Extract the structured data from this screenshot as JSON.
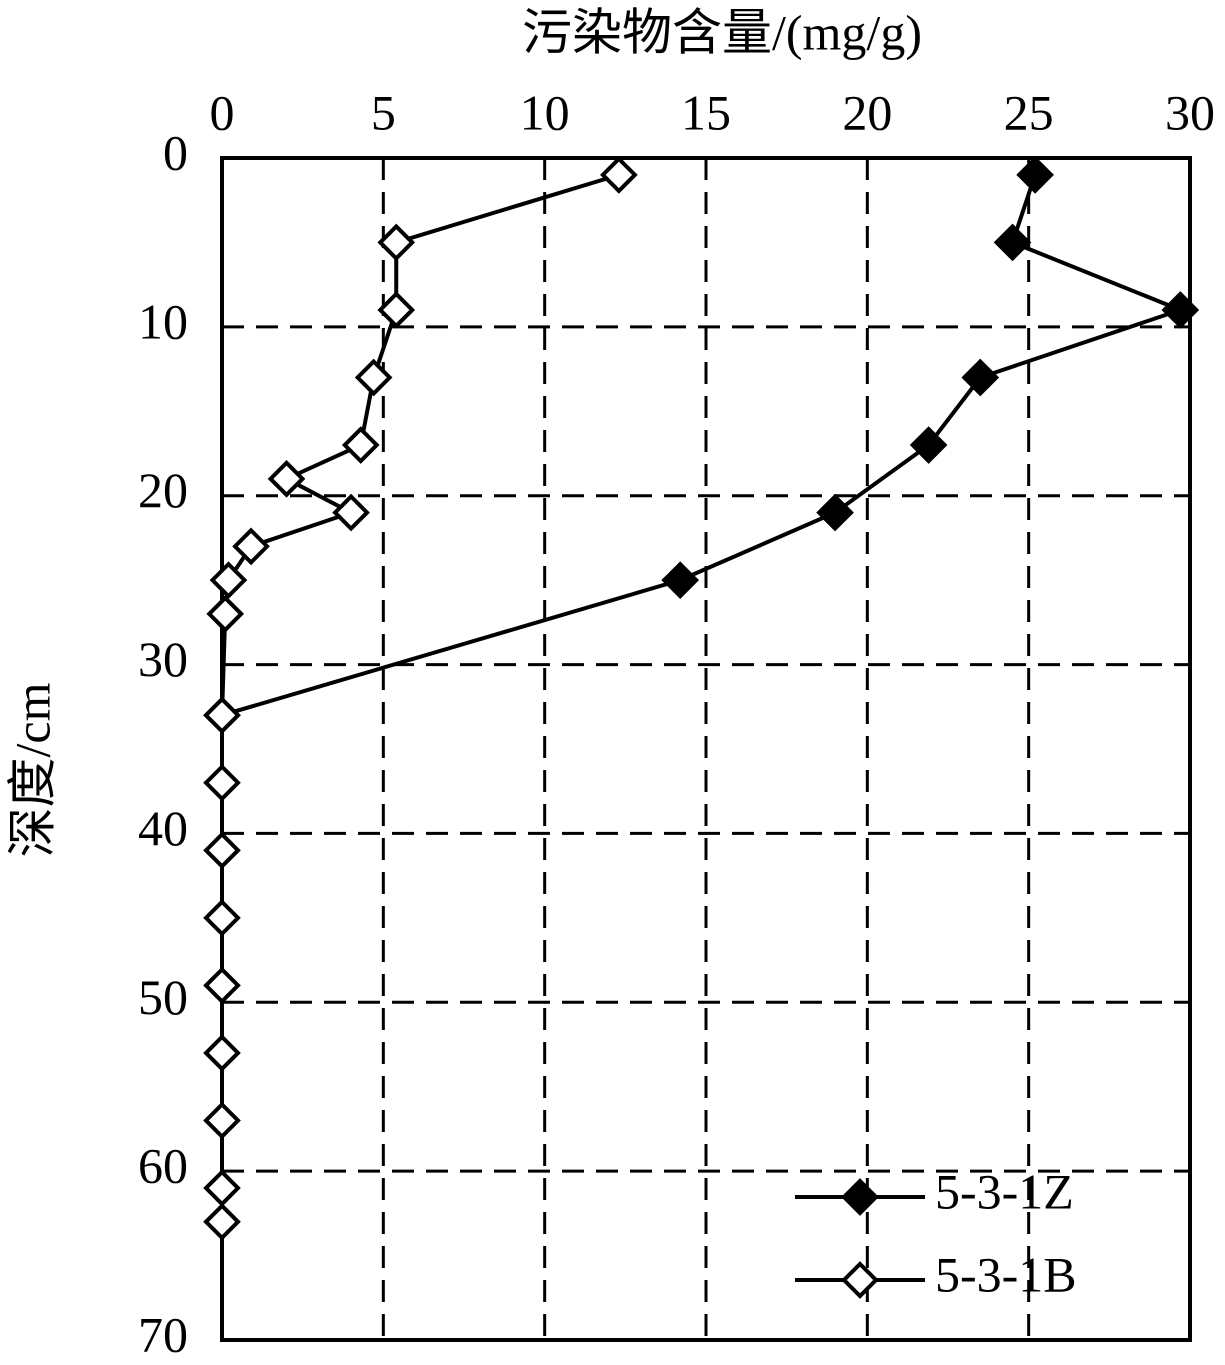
{
  "chart_data": {
    "type": "line",
    "title": "污染物含量/(mg/g)",
    "y_label": "深度/cm",
    "xlim": [
      0,
      30
    ],
    "xticks": [
      0,
      5,
      10,
      15,
      20,
      25,
      30
    ],
    "ylim": [
      0,
      70
    ],
    "yticks": [
      0,
      10,
      20,
      30,
      40,
      50,
      60,
      70
    ],
    "y_inverted": true,
    "x_axis_position": "top",
    "grid": true,
    "legend": "lower right",
    "series": [
      {
        "name": "5-3-1Z",
        "color": "#000000",
        "marker": "filled-diamond",
        "y": [
          1,
          5,
          9,
          13,
          17,
          21,
          25,
          33
        ],
        "values": [
          25.2,
          24.5,
          29.7,
          23.5,
          21.9,
          19.0,
          14.2,
          0
        ]
      },
      {
        "name": "5-3-1B",
        "color": "#000000",
        "marker": "open-diamond",
        "y": [
          1,
          5,
          9,
          13,
          17,
          19,
          21,
          23,
          25,
          27,
          33,
          37,
          41,
          45,
          49,
          53,
          57,
          61,
          63
        ],
        "values": [
          12.3,
          5.4,
          5.4,
          4.7,
          4.3,
          2.0,
          4.0,
          0.9,
          0.2,
          0.1,
          0,
          0,
          0,
          0,
          0,
          0,
          0,
          0,
          0
        ]
      }
    ]
  }
}
